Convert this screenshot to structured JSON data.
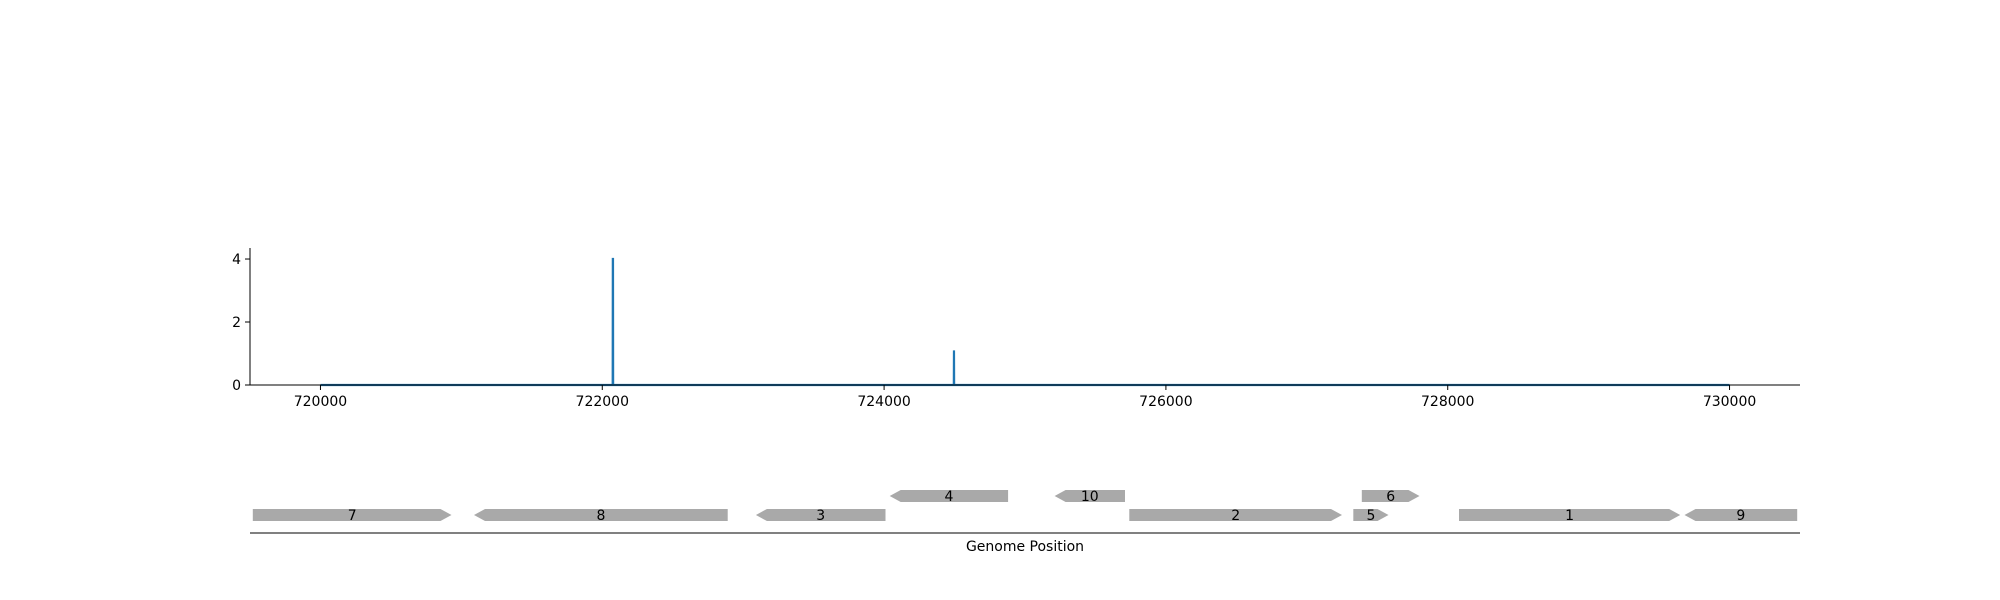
{
  "chart_data": [
    {
      "type": "line",
      "title": "",
      "xlabel": "",
      "ylabel": "",
      "xlim": [
        719500,
        730500
      ],
      "ylim": [
        0,
        4.35
      ],
      "x_ticks": [
        720000,
        722000,
        724000,
        726000,
        728000,
        730000
      ],
      "y_ticks": [
        0,
        2,
        4
      ],
      "grid": false,
      "line_color": "#1f77b4",
      "series": [
        {
          "x": [
            720000,
            722074,
            722075,
            722076,
            722077,
            724495,
            724496,
            724497,
            730000
          ],
          "y": [
            0,
            0,
            4,
            4,
            0,
            0,
            1.1,
            0,
            0
          ]
        }
      ]
    },
    {
      "type": "gene_track",
      "xlabel": "Genome Position",
      "xlim": [
        719500,
        730500
      ],
      "gene_color": "#a9a9a9",
      "genes": [
        {
          "label": "7",
          "start": 719520,
          "end": 720930,
          "strand": "+",
          "row": 0
        },
        {
          "label": "8",
          "start": 721090,
          "end": 722890,
          "strand": "-",
          "row": 0
        },
        {
          "label": "3",
          "start": 723090,
          "end": 724010,
          "strand": "-",
          "row": 0
        },
        {
          "label": "4",
          "start": 724040,
          "end": 724880,
          "strand": "-",
          "row": 1
        },
        {
          "label": "10",
          "start": 725210,
          "end": 725710,
          "strand": "-",
          "row": 1
        },
        {
          "label": "2",
          "start": 725740,
          "end": 727250,
          "strand": "+",
          "row": 0
        },
        {
          "label": "5",
          "start": 727330,
          "end": 727580,
          "strand": "+",
          "row": 0
        },
        {
          "label": "6",
          "start": 727390,
          "end": 727800,
          "strand": "+",
          "row": 1
        },
        {
          "label": "1",
          "start": 728080,
          "end": 729650,
          "strand": "+",
          "row": 0
        },
        {
          "label": "9",
          "start": 729680,
          "end": 730480,
          "strand": "-",
          "row": 0
        }
      ]
    }
  ]
}
